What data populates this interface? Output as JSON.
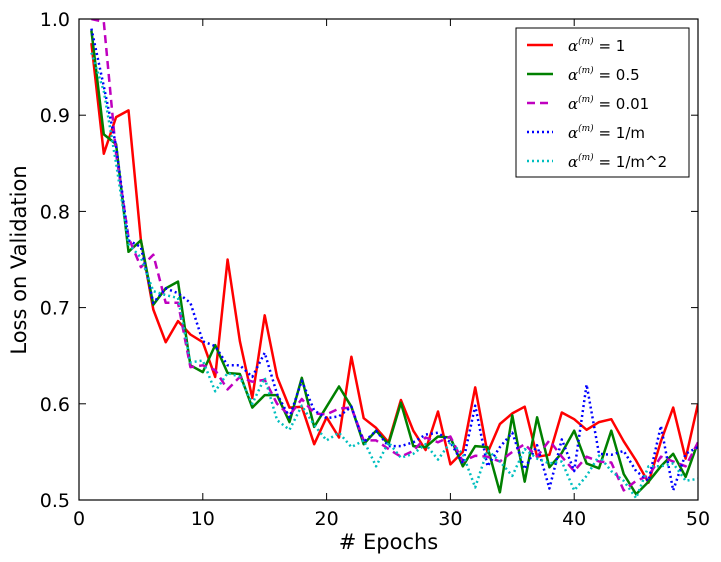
{
  "chart_data": {
    "type": "line",
    "title": "",
    "xlabel": "# Epochs",
    "ylabel": "Loss on Validation",
    "xlim": [
      0,
      50
    ],
    "ylim": [
      0.5,
      1.0
    ],
    "xticks": [
      0,
      10,
      20,
      30,
      40,
      50
    ],
    "yticks": [
      0.5,
      0.6,
      0.7,
      0.8,
      0.9,
      1.0
    ],
    "xtick_labels": [
      "0",
      "10",
      "20",
      "30",
      "40",
      "50"
    ],
    "ytick_labels": [
      "0.5",
      "0.6",
      "0.7",
      "0.8",
      "0.9",
      "1.0"
    ],
    "grid": false,
    "legend_position": "top-right",
    "x": [
      1,
      2,
      3,
      4,
      5,
      6,
      7,
      8,
      9,
      10,
      11,
      12,
      13,
      14,
      15,
      16,
      17,
      18,
      19,
      20,
      21,
      22,
      23,
      24,
      25,
      26,
      27,
      28,
      29,
      30,
      31,
      32,
      33,
      34,
      35,
      36,
      37,
      38,
      39,
      40,
      41,
      42,
      43,
      44,
      45,
      46,
      47,
      48,
      49,
      50
    ],
    "series": [
      {
        "name": "α(m) = 1",
        "legend_symbol": "α",
        "legend_sup": "(m)",
        "legend_value": " = 1",
        "color": "#ff0000",
        "style": "solid",
        "values": [
          0.975,
          0.86,
          0.898,
          0.905,
          0.77,
          0.698,
          0.664,
          0.686,
          0.672,
          0.664,
          0.628,
          0.75,
          0.665,
          0.606,
          0.692,
          0.628,
          0.596,
          0.597,
          0.558,
          0.586,
          0.565,
          0.649,
          0.585,
          0.575,
          0.56,
          0.604,
          0.572,
          0.552,
          0.592,
          0.537,
          0.55,
          0.617,
          0.549,
          0.579,
          0.59,
          0.597,
          0.545,
          0.547,
          0.591,
          0.584,
          0.573,
          0.581,
          0.584,
          0.561,
          0.541,
          0.518,
          0.561,
          0.596,
          0.543,
          0.6
        ]
      },
      {
        "name": "α(m) = 0.5",
        "legend_symbol": "α",
        "legend_sup": "(m)",
        "legend_value": " = 0.5",
        "color": "#008000",
        "style": "solid",
        "values": [
          0.988,
          0.88,
          0.87,
          0.758,
          0.77,
          0.703,
          0.72,
          0.727,
          0.64,
          0.633,
          0.661,
          0.632,
          0.631,
          0.596,
          0.609,
          0.609,
          0.581,
          0.627,
          0.576,
          0.597,
          0.618,
          0.597,
          0.558,
          0.572,
          0.558,
          0.601,
          0.556,
          0.555,
          0.566,
          0.565,
          0.535,
          0.556,
          0.555,
          0.508,
          0.588,
          0.519,
          0.586,
          0.534,
          0.549,
          0.572,
          0.538,
          0.533,
          0.572,
          0.527,
          0.506,
          0.519,
          0.535,
          0.548,
          0.524,
          0.56
        ]
      },
      {
        "name": "α(m) = 0.01",
        "legend_symbol": "α",
        "legend_sup": "(m)",
        "legend_value": " = 0.01",
        "color": "#bf00bf",
        "style": "dashed",
        "values": [
          1.0,
          0.997,
          0.86,
          0.773,
          0.742,
          0.755,
          0.705,
          0.705,
          0.638,
          0.64,
          0.635,
          0.615,
          0.628,
          0.623,
          0.625,
          0.6,
          0.588,
          0.605,
          0.59,
          0.589,
          0.595,
          0.596,
          0.562,
          0.562,
          0.553,
          0.545,
          0.551,
          0.565,
          0.56,
          0.566,
          0.54,
          0.546,
          0.545,
          0.54,
          0.55,
          0.558,
          0.545,
          0.562,
          0.545,
          0.53,
          0.545,
          0.54,
          0.539,
          0.51,
          0.52,
          0.525,
          0.545,
          0.54,
          0.535,
          0.56
        ]
      },
      {
        "name": "α(m) = 1/m",
        "legend_symbol": "α",
        "legend_sup": "(m)",
        "legend_value": " = 1/m",
        "color": "#0000ff",
        "style": "dotted",
        "values": [
          0.99,
          0.93,
          0.868,
          0.77,
          0.763,
          0.705,
          0.72,
          0.715,
          0.705,
          0.665,
          0.66,
          0.64,
          0.64,
          0.628,
          0.653,
          0.61,
          0.586,
          0.624,
          0.593,
          0.585,
          0.587,
          0.597,
          0.56,
          0.572,
          0.556,
          0.556,
          0.56,
          0.568,
          0.57,
          0.56,
          0.538,
          0.598,
          0.535,
          0.555,
          0.57,
          0.532,
          0.557,
          0.512,
          0.563,
          0.53,
          0.62,
          0.548,
          0.547,
          0.551,
          0.53,
          0.52,
          0.577,
          0.51,
          0.548,
          0.555
        ]
      },
      {
        "name": "α(m) = 1/m^2",
        "legend_symbol": "α",
        "legend_sup": "(m)",
        "legend_value": " = 1/m^2",
        "color": "#00bfbf",
        "style": "dotted",
        "values": [
          0.965,
          0.925,
          0.85,
          0.766,
          0.752,
          0.717,
          0.713,
          0.71,
          0.643,
          0.645,
          0.613,
          0.632,
          0.628,
          0.6,
          0.627,
          0.583,
          0.573,
          0.598,
          0.578,
          0.562,
          0.57,
          0.555,
          0.562,
          0.535,
          0.56,
          0.544,
          0.548,
          0.558,
          0.542,
          0.56,
          0.548,
          0.513,
          0.552,
          0.54,
          0.525,
          0.553,
          0.543,
          0.538,
          0.54,
          0.51,
          0.525,
          0.546,
          0.53,
          0.52,
          0.502,
          0.535,
          0.535,
          0.538,
          0.52,
          0.522
        ]
      }
    ]
  }
}
